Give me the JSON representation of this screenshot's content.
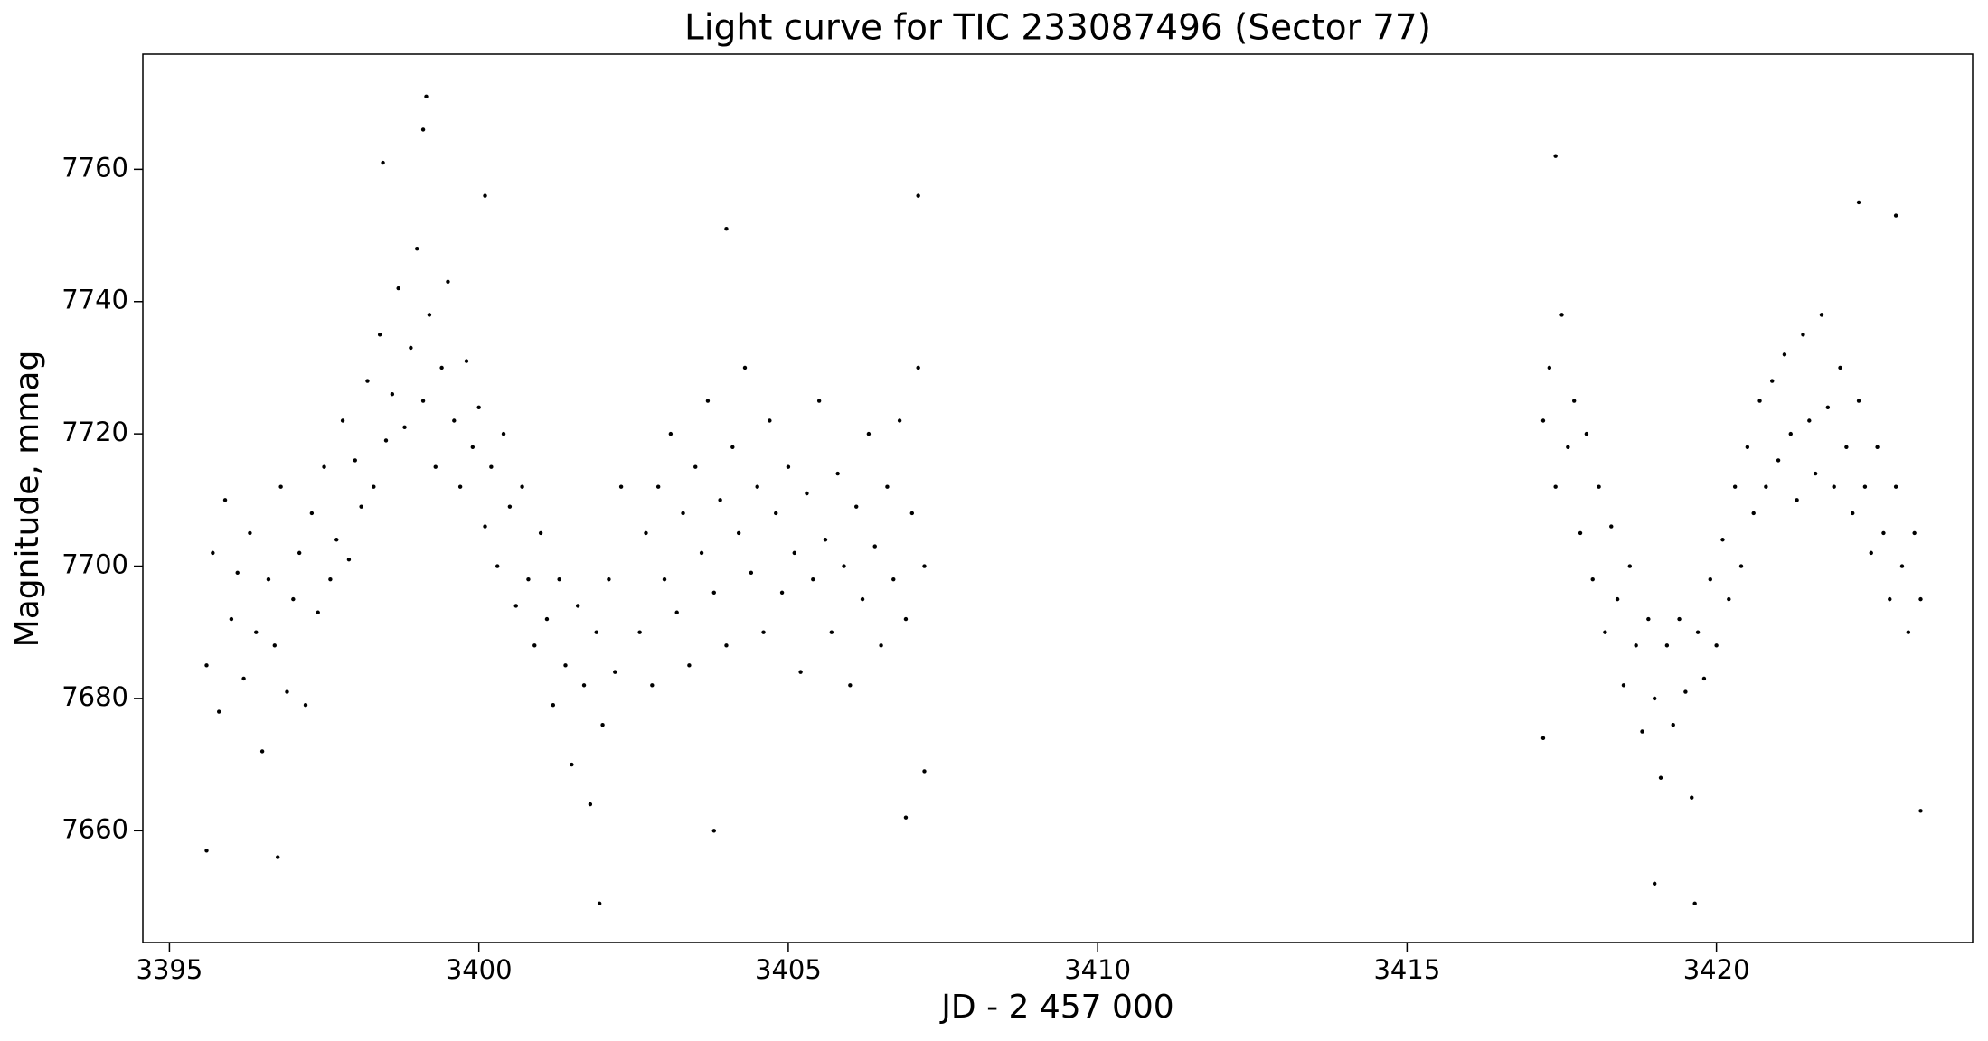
{
  "chart_data": {
    "type": "scatter",
    "title": "Light curve for TIC 233087496 (Sector 77)",
    "x_label": "JD - 2 457 000",
    "y_label": "Magnitude, mmag",
    "color": "#000000",
    "grid": false,
    "xlim": [
      3394.57,
      3424.14
    ],
    "ylim": [
      7643.1,
      7777.4
    ],
    "xticks": [
      3395,
      3400,
      3405,
      3410,
      3415,
      3420
    ],
    "yticks": [
      7660,
      7680,
      7700,
      7720,
      7740,
      7760
    ],
    "x": [
      3395.6,
      3395.7,
      3395.8,
      3395.9,
      3396.0,
      3396.1,
      3396.2,
      3396.3,
      3396.4,
      3396.5,
      3396.6,
      3396.7,
      3396.8,
      3396.9,
      3397.0,
      3397.1,
      3397.2,
      3397.3,
      3397.4,
      3397.5,
      3397.6,
      3397.7,
      3397.8,
      3397.9,
      3398.0,
      3398.1,
      3398.2,
      3398.3,
      3398.4,
      3398.5,
      3398.6,
      3398.7,
      3398.8,
      3398.9,
      3399.0,
      3399.1,
      3399.2,
      3399.3,
      3399.4,
      3399.5,
      3399.6,
      3399.7,
      3399.8,
      3399.9,
      3400.0,
      3400.1,
      3400.2,
      3400.3,
      3400.4,
      3400.5,
      3400.6,
      3400.7,
      3400.8,
      3400.9,
      3401.0,
      3401.1,
      3401.2,
      3401.3,
      3401.4,
      3401.5,
      3401.6,
      3401.7,
      3401.8,
      3401.9,
      3402.0,
      3402.1,
      3402.2,
      3402.3,
      3399.15,
      3399.1,
      3398.45,
      3400.1,
      3401.95,
      3395.6,
      3396.75,
      3402.6,
      3402.7,
      3402.8,
      3402.9,
      3403.0,
      3403.1,
      3403.2,
      3403.3,
      3403.4,
      3403.5,
      3403.6,
      3403.7,
      3403.8,
      3403.9,
      3404.0,
      3404.1,
      3404.2,
      3404.3,
      3404.4,
      3404.5,
      3404.6,
      3404.7,
      3404.8,
      3404.9,
      3405.0,
      3405.1,
      3405.2,
      3405.3,
      3405.4,
      3405.5,
      3405.6,
      3405.7,
      3405.8,
      3405.9,
      3406.0,
      3406.1,
      3406.2,
      3406.3,
      3406.4,
      3406.5,
      3406.6,
      3406.7,
      3406.8,
      3406.9,
      3407.0,
      3407.1,
      3407.2,
      3403.8,
      3404.0,
      3407.1,
      3406.9,
      3407.2,
      3417.2,
      3417.3,
      3417.4,
      3417.5,
      3417.6,
      3417.7,
      3417.8,
      3417.9,
      3418.0,
      3418.1,
      3418.2,
      3418.3,
      3418.4,
      3418.5,
      3418.6,
      3418.7,
      3418.8,
      3418.9,
      3419.0,
      3419.1,
      3419.2,
      3419.3,
      3419.4,
      3419.5,
      3419.6,
      3419.7,
      3419.8,
      3419.9,
      3420.0,
      3420.1,
      3420.2,
      3420.3,
      3420.4,
      3420.5,
      3420.6,
      3420.7,
      3420.8,
      3420.9,
      3421.0,
      3421.1,
      3421.2,
      3421.3,
      3421.4,
      3421.5,
      3421.6,
      3421.7,
      3421.8,
      3421.9,
      3422.0,
      3422.1,
      3422.2,
      3422.3,
      3422.4,
      3422.5,
      3422.6,
      3422.7,
      3422.8,
      3422.9,
      3423.0,
      3423.1,
      3423.2,
      3423.3,
      3417.4,
      3417.2,
      3419.65,
      3419.0,
      3422.3,
      3423.3,
      3422.9
    ],
    "values": [
      7685,
      7702,
      7678,
      7710,
      7692,
      7699,
      7683,
      7705,
      7690,
      7672,
      7698,
      7688,
      7712,
      7681,
      7695,
      7702,
      7679,
      7708,
      7693,
      7715,
      7698,
      7704,
      7722,
      7701,
      7716,
      7709,
      7728,
      7712,
      7735,
      7719,
      7726,
      7742,
      7721,
      7733,
      7748,
      7725,
      7738,
      7715,
      7730,
      7743,
      7722,
      7712,
      7731,
      7718,
      7724,
      7706,
      7715,
      7700,
      7720,
      7709,
      7694,
      7712,
      7698,
      7688,
      7705,
      7692,
      7679,
      7698,
      7685,
      7670,
      7694,
      7682,
      7664,
      7690,
      7676,
      7698,
      7684,
      7712,
      7771,
      7766,
      7761,
      7756,
      7649,
      7657,
      7656,
      7690,
      7705,
      7682,
      7712,
      7698,
      7720,
      7693,
      7708,
      7685,
      7715,
      7702,
      7725,
      7696,
      7710,
      7688,
      7718,
      7705,
      7730,
      7699,
      7712,
      7690,
      7722,
      7708,
      7696,
      7715,
      7702,
      7684,
      7711,
      7698,
      7725,
      7704,
      7690,
      7714,
      7700,
      7682,
      7709,
      7695,
      7720,
      7703,
      7688,
      7712,
      7698,
      7722,
      7692,
      7708,
      7730,
      7700,
      7660,
      7751,
      7756,
      7662,
      7669,
      7722,
      7730,
      7712,
      7738,
      7718,
      7725,
      7705,
      7720,
      7698,
      7712,
      7690,
      7706,
      7695,
      7682,
      7700,
      7688,
      7675,
      7692,
      7680,
      7668,
      7688,
      7676,
      7692,
      7681,
      7665,
      7690,
      7683,
      7698,
      7688,
      7704,
      7695,
      7712,
      7700,
      7718,
      7708,
      7725,
      7712,
      7728,
      7716,
      7732,
      7720,
      7710,
      7735,
      7722,
      7714,
      7738,
      7724,
      7712,
      7730,
      7718,
      7708,
      7725,
      7712,
      7702,
      7718,
      7705,
      7695,
      7712,
      7700,
      7690,
      7705,
      7695,
      7762,
      7674,
      7649,
      7652,
      7755,
      7663,
      7753
    ]
  }
}
